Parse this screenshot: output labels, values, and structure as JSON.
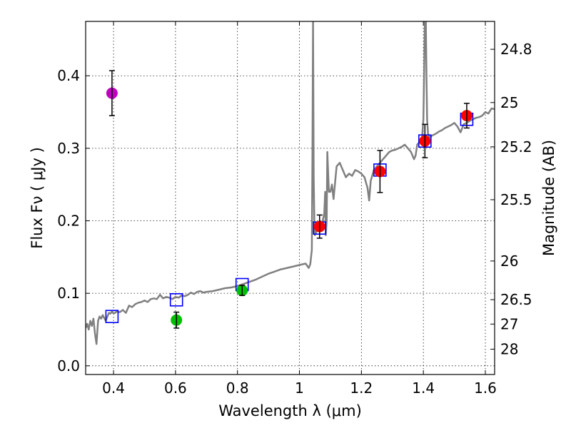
{
  "chart_data": {
    "type": "scatter",
    "title": "",
    "xlabel": "Wavelength  λ (μm)",
    "ylabel": "Flux  Fν  ( μJy )",
    "y2label": "Magnitude (AB)",
    "xlim": [
      0.31,
      1.63
    ],
    "ylim": [
      -0.012,
      0.475
    ],
    "xticks": [
      0.4,
      0.6,
      0.8,
      1.0,
      1.2,
      1.4,
      1.6
    ],
    "xtick_labels": [
      "0.4",
      "0.6",
      "0.8",
      "1",
      "1.2",
      "1.4",
      "1.6"
    ],
    "yticks": [
      0.0,
      0.1,
      0.2,
      0.3,
      0.4
    ],
    "ytick_labels": [
      "0.0",
      "0.1",
      "0.2",
      "0.3",
      "0.4"
    ],
    "magnitude_ticks": [
      24.8,
      25.0,
      25.2,
      25.5,
      26.0,
      26.5,
      27.0,
      28.0
    ],
    "magnitude_tick_labels": [
      "24.8",
      "25",
      "25.2",
      "25.5",
      "26",
      "26.5",
      "27",
      "28"
    ],
    "grid": true,
    "colors": {
      "spectrum": "#808080",
      "model_box": "#0000ff",
      "error_bar": "#000000",
      "magenta": "#bf00bf",
      "green": "#00bf00",
      "red": "#ff0000"
    },
    "series": [
      {
        "name": "model spectrum",
        "kind": "line",
        "color": "#808080",
        "x": [
          0.31,
          0.315,
          0.32,
          0.325,
          0.33,
          0.335,
          0.34,
          0.345,
          0.35,
          0.355,
          0.36,
          0.365,
          0.37,
          0.375,
          0.38,
          0.385,
          0.39,
          0.395,
          0.4,
          0.405,
          0.41,
          0.42,
          0.43,
          0.44,
          0.45,
          0.46,
          0.47,
          0.48,
          0.49,
          0.5,
          0.51,
          0.52,
          0.53,
          0.54,
          0.55,
          0.56,
          0.57,
          0.58,
          0.59,
          0.6,
          0.61,
          0.62,
          0.63,
          0.64,
          0.65,
          0.66,
          0.67,
          0.68,
          0.69,
          0.7,
          0.72,
          0.74,
          0.76,
          0.78,
          0.8,
          0.82,
          0.84,
          0.86,
          0.88,
          0.9,
          0.92,
          0.94,
          0.96,
          0.98,
          1.0,
          1.02,
          1.03,
          1.035,
          1.04,
          1.042,
          1.044,
          1.046,
          1.048,
          1.05,
          1.055,
          1.06,
          1.065,
          1.07,
          1.075,
          1.08,
          1.083,
          1.085,
          1.088,
          1.09,
          1.095,
          1.1,
          1.105,
          1.11,
          1.12,
          1.13,
          1.14,
          1.15,
          1.16,
          1.17,
          1.18,
          1.19,
          1.2,
          1.21,
          1.22,
          1.225,
          1.23,
          1.24,
          1.25,
          1.26,
          1.27,
          1.28,
          1.29,
          1.3,
          1.31,
          1.32,
          1.33,
          1.34,
          1.35,
          1.36,
          1.37,
          1.375,
          1.38,
          1.39,
          1.395,
          1.4,
          1.405,
          1.408,
          1.41,
          1.412,
          1.415,
          1.42,
          1.43,
          1.44,
          1.45,
          1.46,
          1.47,
          1.48,
          1.49,
          1.5,
          1.51,
          1.52,
          1.53,
          1.54,
          1.55,
          1.56,
          1.57,
          1.58,
          1.59,
          1.6,
          1.61,
          1.62,
          1.63
        ],
        "y": [
          0.052,
          0.058,
          0.05,
          0.062,
          0.055,
          0.065,
          0.045,
          0.03,
          0.062,
          0.068,
          0.065,
          0.07,
          0.066,
          0.062,
          0.068,
          0.073,
          0.072,
          0.075,
          0.072,
          0.073,
          0.075,
          0.074,
          0.077,
          0.073,
          0.083,
          0.081,
          0.085,
          0.087,
          0.088,
          0.09,
          0.088,
          0.092,
          0.093,
          0.092,
          0.098,
          0.093,
          0.095,
          0.094,
          0.092,
          0.095,
          0.094,
          0.097,
          0.096,
          0.098,
          0.101,
          0.099,
          0.102,
          0.103,
          0.101,
          0.102,
          0.103,
          0.105,
          0.107,
          0.108,
          0.11,
          0.113,
          0.116,
          0.119,
          0.123,
          0.127,
          0.13,
          0.133,
          0.135,
          0.137,
          0.139,
          0.141,
          0.135,
          0.14,
          0.16,
          0.3,
          0.475,
          0.26,
          0.2,
          0.18,
          0.185,
          0.188,
          0.19,
          0.19,
          0.2,
          0.21,
          0.24,
          0.18,
          0.2,
          0.295,
          0.24,
          0.24,
          0.25,
          0.23,
          0.275,
          0.28,
          0.27,
          0.26,
          0.265,
          0.262,
          0.27,
          0.268,
          0.265,
          0.26,
          0.245,
          0.228,
          0.255,
          0.27,
          0.275,
          0.28,
          0.285,
          0.29,
          0.295,
          0.297,
          0.298,
          0.3,
          0.302,
          0.305,
          0.3,
          0.295,
          0.285,
          0.29,
          0.305,
          0.31,
          0.31,
          0.34,
          0.475,
          0.475,
          0.4,
          0.34,
          0.32,
          0.315,
          0.318,
          0.32,
          0.323,
          0.325,
          0.328,
          0.33,
          0.332,
          0.335,
          0.33,
          0.322,
          0.333,
          0.335,
          0.338,
          0.34,
          0.342,
          0.343,
          0.345,
          0.35,
          0.348,
          0.355,
          0.354
        ]
      },
      {
        "name": "synthetic photometry",
        "kind": "open-square",
        "color": "#0000ff",
        "x": [
          0.395,
          0.603,
          0.815,
          1.065,
          1.26,
          1.405,
          1.54
        ],
        "y": [
          0.068,
          0.091,
          0.112,
          0.19,
          0.27,
          0.31,
          0.34
        ]
      },
      {
        "name": "observed flux (magenta)",
        "kind": "point",
        "color": "#bf00bf",
        "x": [
          0.395
        ],
        "y": [
          0.376
        ],
        "yerr": [
          0.031
        ]
      },
      {
        "name": "observed flux (green)",
        "kind": "point",
        "color": "#00bf00",
        "x": [
          0.603,
          0.815
        ],
        "y": [
          0.063,
          0.104
        ],
        "yerr": [
          0.011,
          0.007
        ]
      },
      {
        "name": "observed flux (red)",
        "kind": "point",
        "color": "#ff0000",
        "x": [
          1.065,
          1.26,
          1.405,
          1.54
        ],
        "y": [
          0.192,
          0.268,
          0.31,
          0.345
        ],
        "yerr": [
          0.016,
          0.029,
          0.023,
          0.017
        ]
      }
    ]
  }
}
